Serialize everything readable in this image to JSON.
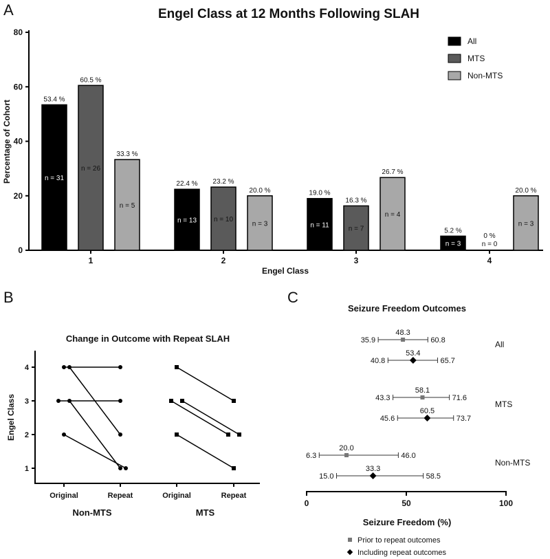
{
  "chart_data": [
    {
      "panel": "A",
      "type": "bar",
      "title": "Engel Class at 12 Months Following SLAH",
      "xlabel": "Engel Class",
      "ylabel": "Percentage of Cohort",
      "ylim": [
        0,
        80
      ],
      "yticks": [
        0,
        20,
        40,
        60,
        80
      ],
      "categories": [
        "1",
        "2",
        "3",
        "4"
      ],
      "legend_position": "top-right",
      "series": [
        {
          "name": "All",
          "color": "#000000",
          "values": [
            53.4,
            22.4,
            19.0,
            5.2
          ],
          "labels": [
            "53.4 %",
            "22.4 %",
            "19.0 %",
            "5.2 %"
          ],
          "n": [
            "n = 31",
            "n = 13",
            "n = 11",
            "n = 3"
          ]
        },
        {
          "name": "MTS",
          "color": "#5a5a5a",
          "values": [
            60.5,
            23.2,
            16.3,
            0
          ],
          "labels": [
            "60.5 %",
            "23.2 %",
            "16.3 %",
            "0 %"
          ],
          "n": [
            "n = 26",
            "n = 10",
            "n = 7",
            "n = 0"
          ]
        },
        {
          "name": "Non-MTS",
          "color": "#a8a8a8",
          "values": [
            33.3,
            20.0,
            26.7,
            20.0
          ],
          "labels": [
            "33.3 %",
            "20.0 %",
            "26.7 %",
            "20.0 %"
          ],
          "n": [
            "n = 5",
            "n = 3",
            "n = 4",
            "n = 3"
          ]
        }
      ]
    },
    {
      "panel": "B",
      "type": "line",
      "title": "Change in Outcome with Repeat SLAH",
      "ylabel": "Engel Class",
      "yticks": [
        1,
        2,
        3,
        4
      ],
      "xticks": [
        "Original",
        "Repeat",
        "Original",
        "Repeat"
      ],
      "groups": [
        {
          "name": "Non-MTS",
          "marker": "circle",
          "pairs": [
            [
              4,
              4
            ],
            [
              4,
              2
            ],
            [
              3,
              3
            ],
            [
              3,
              1
            ],
            [
              2,
              1
            ]
          ]
        },
        {
          "name": "MTS",
          "marker": "square",
          "pairs": [
            [
              4,
              3
            ],
            [
              3,
              2
            ],
            [
              3,
              2
            ],
            [
              2,
              1
            ]
          ]
        }
      ]
    },
    {
      "panel": "C",
      "type": "scatter",
      "title": "Seizure Freedom Outcomes",
      "xlabel": "Seizure Freedom (%)",
      "xlim": [
        0,
        100
      ],
      "xticks": [
        0,
        50,
        100
      ],
      "legend": [
        {
          "name": "Prior to repeat outcomes",
          "marker": "square",
          "color": "#777777"
        },
        {
          "name": "Including repeat outcomes",
          "marker": "diamond",
          "color": "#000000"
        }
      ],
      "groups": [
        {
          "name": "All",
          "prior": {
            "value": 48.3,
            "low": 35.9,
            "high": 60.8
          },
          "including": {
            "value": 53.4,
            "low": 40.8,
            "high": 65.7
          }
        },
        {
          "name": "MTS",
          "prior": {
            "value": 58.1,
            "low": 43.3,
            "high": 71.6
          },
          "including": {
            "value": 60.5,
            "low": 45.6,
            "high": 73.7
          }
        },
        {
          "name": "Non-MTS",
          "prior": {
            "value": 20.0,
            "low": 6.3,
            "high": 46.0
          },
          "including": {
            "value": 33.3,
            "low": 15.0,
            "high": 58.5
          }
        }
      ]
    }
  ],
  "panel_letters": [
    "A",
    "B",
    "C"
  ]
}
